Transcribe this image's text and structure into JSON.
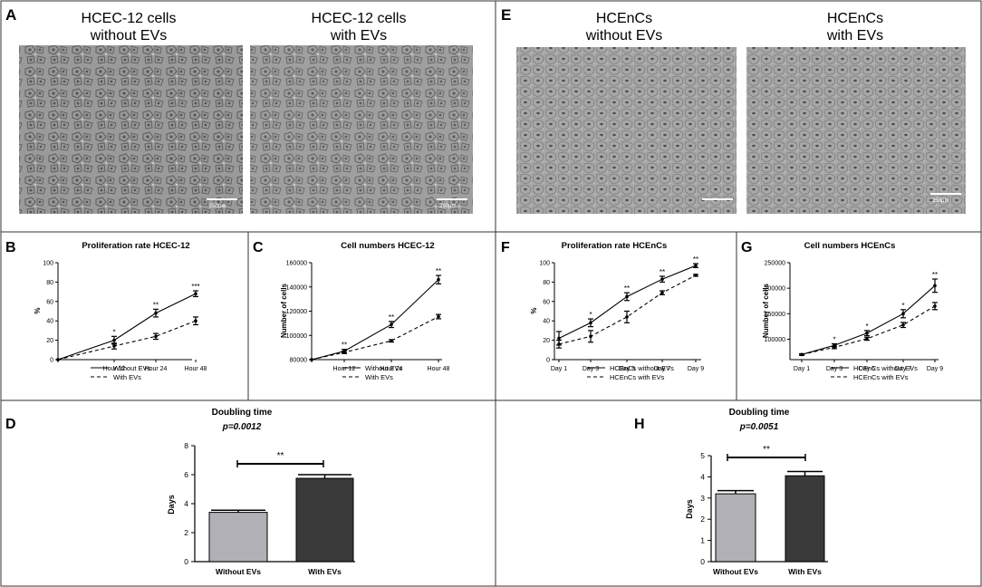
{
  "panels": {
    "A": {
      "letter": "A",
      "left_title": [
        "HCEC-12 cells",
        "without EVs"
      ],
      "right_title": [
        "HCEC-12 cells",
        "with EVs"
      ],
      "scale_bar": "250μm"
    },
    "E": {
      "letter": "E",
      "left_title": [
        "HCEnCs",
        "without EVs"
      ],
      "right_title": [
        "HCEnCs",
        "with EVs"
      ],
      "scale_bar": "250μm"
    }
  },
  "chart_data": [
    {
      "id": "B",
      "letter": "B",
      "type": "line",
      "title": "Proliferation rate HCEC-12",
      "ylabel": "%",
      "xlabel": "",
      "x": [
        "",
        "Hour 12",
        "Hour 24",
        "Hour 48"
      ],
      "ylim": [
        0,
        100
      ],
      "yticks": [
        0,
        20,
        40,
        60,
        80,
        100
      ],
      "ytick_labels": [
        "0",
        "20",
        "40",
        "60",
        "80",
        "100"
      ],
      "series": [
        {
          "name": "Without EVs",
          "style": "solid",
          "values": [
            0,
            20,
            48,
            68
          ],
          "errors": [
            0,
            4,
            4,
            3
          ]
        },
        {
          "name": "With EVs",
          "style": "dashed",
          "values": [
            0,
            14,
            24,
            40
          ],
          "errors": [
            0,
            3,
            3,
            4
          ]
        }
      ],
      "significance": [
        "",
        "*",
        "**",
        "***"
      ],
      "legend": "bottom-right"
    },
    {
      "id": "C",
      "letter": "C",
      "type": "line",
      "title": "Cell numbers HCEC-12",
      "ylabel": "Number of cells",
      "xlabel": "",
      "x": [
        "",
        "Hour 12",
        "Hour 24",
        "Hour 48"
      ],
      "ylim": [
        80000,
        160000
      ],
      "yticks": [
        80000,
        100000,
        120000,
        140000,
        160000
      ],
      "ytick_labels": [
        "80000",
        "100000",
        "120000",
        "140000",
        "160000"
      ],
      "series": [
        {
          "name": "Without EVs",
          "style": "solid",
          "values": [
            80000,
            87000,
            109000,
            146000
          ],
          "errors": [
            0,
            1500,
            2500,
            3500
          ]
        },
        {
          "name": "With EVs",
          "style": "dashed",
          "values": [
            80000,
            86000,
            95500,
            115500
          ],
          "errors": [
            0,
            1000,
            1000,
            1800
          ]
        }
      ],
      "significance": [
        "",
        "**",
        "**",
        "**"
      ],
      "legend": "bottom-right"
    },
    {
      "id": "F",
      "letter": "F",
      "type": "line",
      "title": "Proliferation rate HCEnCs",
      "ylabel": "%",
      "xlabel": "",
      "x": [
        "Day 1",
        "Day 3",
        "Day 5",
        "Day 7",
        "Day 9"
      ],
      "ylim": [
        0,
        100
      ],
      "yticks": [
        0,
        20,
        40,
        60,
        80,
        100
      ],
      "ytick_labels": [
        "0",
        "20",
        "40",
        "60",
        "80",
        "100"
      ],
      "series": [
        {
          "name": "HCEnCs without EVs",
          "style": "solid",
          "values": [
            22,
            38,
            65,
            83,
            97
          ],
          "errors": [
            7,
            4,
            4,
            3,
            2
          ]
        },
        {
          "name": "HCEnCs with EVs",
          "style": "dashed",
          "values": [
            16,
            24,
            44,
            69,
            87
          ],
          "errors": [
            4,
            6,
            6,
            2,
            1
          ]
        }
      ],
      "significance": [
        "",
        "*",
        "**",
        "**",
        "**"
      ],
      "legend": "bottom-center"
    },
    {
      "id": "G",
      "letter": "G",
      "type": "line",
      "title": "Cell numbers HCEnCs",
      "ylabel": "Number of cells",
      "xlabel": "",
      "x": [
        "Day 1",
        "Day 3",
        "Day 5",
        "Day 7",
        "Day 9"
      ],
      "ylim": [
        60000,
        250000
      ],
      "yticks": [
        100000,
        150000,
        200000,
        250000
      ],
      "ytick_labels": [
        "100000",
        "150000",
        "200000",
        "250000"
      ],
      "series": [
        {
          "name": "HCEnCs without EVs",
          "style": "solid",
          "values": [
            70000,
            88000,
            112000,
            150000,
            205000
          ],
          "errors": [
            1500,
            3000,
            5000,
            8000,
            13000
          ]
        },
        {
          "name": "HCEnCs with EVs",
          "style": "dashed",
          "values": [
            70000,
            84000,
            101000,
            128000,
            165000
          ],
          "errors": [
            1500,
            2500,
            3000,
            5000,
            7000
          ]
        }
      ],
      "significance": [
        "",
        "*",
        "*",
        "*",
        "**"
      ],
      "legend": "bottom-center"
    },
    {
      "id": "D",
      "letter": "D",
      "type": "bar",
      "title": "Doubling time",
      "subtitle": "p=0.0012",
      "ylabel": "Days",
      "xlabel": "",
      "categories": [
        "Without EVs",
        "With EVs"
      ],
      "values": [
        3.4,
        5.75
      ],
      "errors": [
        0.15,
        0.25
      ],
      "colors": [
        "#b0b0b6",
        "#3a3a3a"
      ],
      "ylim": [
        0,
        8
      ],
      "yticks": [
        0,
        2,
        4,
        6,
        8
      ],
      "ytick_labels": [
        "0",
        "2",
        "4",
        "6",
        "8"
      ],
      "significance": "**"
    },
    {
      "id": "H",
      "letter": "H",
      "type": "bar",
      "title": "Doubling time",
      "subtitle": "p=0.0051",
      "ylabel": "Days",
      "xlabel": "",
      "categories": [
        "Without EVs",
        "With EVs"
      ],
      "values": [
        3.2,
        4.05
      ],
      "errors": [
        0.15,
        0.2
      ],
      "colors": [
        "#b0b0b6",
        "#3a3a3a"
      ],
      "ylim": [
        0,
        5
      ],
      "yticks": [
        0,
        1,
        2,
        3,
        4,
        5
      ],
      "ytick_labels": [
        "0",
        "1",
        "2",
        "3",
        "4",
        "5"
      ],
      "significance": "**"
    }
  ]
}
